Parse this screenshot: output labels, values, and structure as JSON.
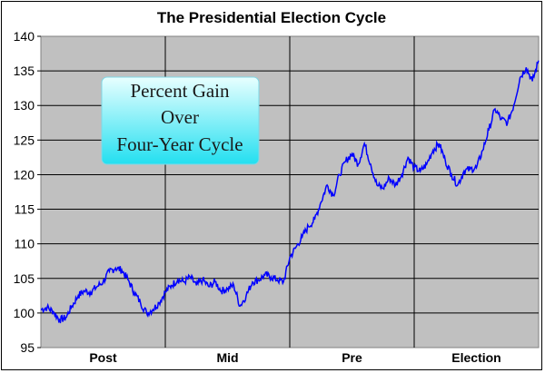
{
  "chart_data": {
    "type": "line",
    "title": "The Presidential Election Cycle",
    "xlabel": "",
    "ylabel": "",
    "categories": [
      "Post",
      "Mid",
      "Pre",
      "Election"
    ],
    "ylim": [
      95,
      140
    ],
    "yticks": [
      95,
      100,
      105,
      110,
      115,
      120,
      125,
      130,
      135,
      140
    ],
    "grid": "horizontal and vertical category dividers",
    "annotation": [
      "Percent Gain",
      "Over",
      "Four-Year Cycle"
    ],
    "series": [
      {
        "color": "#0000ff",
        "x": [
          0,
          0.05,
          0.1,
          0.15,
          0.2,
          0.25,
          0.3,
          0.35,
          0.4,
          0.45,
          0.5,
          0.55,
          0.6,
          0.65,
          0.7,
          0.75,
          0.8,
          0.85,
          0.9,
          0.95,
          1.0,
          1.05,
          1.1,
          1.15,
          1.2,
          1.25,
          1.3,
          1.35,
          1.4,
          1.45,
          1.5,
          1.55,
          1.6,
          1.65,
          1.7,
          1.75,
          1.8,
          1.85,
          1.9,
          1.95,
          2.0,
          2.05,
          2.1,
          2.15,
          2.2,
          2.25,
          2.3,
          2.35,
          2.4,
          2.45,
          2.5,
          2.55,
          2.6,
          2.65,
          2.7,
          2.75,
          2.8,
          2.85,
          2.9,
          2.95,
          3.0,
          3.05,
          3.1,
          3.15,
          3.2,
          3.25,
          3.3,
          3.35,
          3.4,
          3.45,
          3.5,
          3.55,
          3.6,
          3.65,
          3.7,
          3.75,
          3.8,
          3.85,
          3.9,
          3.95,
          4.0
        ],
        "values": [
          100.5,
          100.8,
          100.2,
          99.0,
          99.3,
          101.0,
          102.5,
          103.2,
          103.0,
          103.8,
          104.5,
          106.0,
          106.5,
          106.2,
          104.8,
          103.0,
          101.5,
          100.0,
          100.5,
          101.5,
          103.0,
          104.0,
          104.8,
          104.5,
          105.2,
          104.0,
          104.8,
          103.8,
          104.5,
          103.2,
          103.5,
          104.0,
          101.0,
          102.5,
          104.5,
          104.8,
          105.5,
          105.2,
          104.8,
          104.5,
          108.0,
          109.5,
          111.0,
          112.5,
          113.5,
          116.0,
          118.5,
          117.0,
          120.0,
          122.0,
          123.0,
          121.5,
          124.5,
          121.5,
          118.5,
          118.0,
          119.5,
          118.5,
          120.0,
          122.5,
          121.0,
          120.5,
          121.5,
          123.5,
          124.5,
          122.0,
          120.0,
          118.5,
          120.5,
          120.8,
          121.0,
          123.5,
          126.5,
          129.5,
          128.0,
          127.5,
          130.0,
          134.0,
          135.5,
          133.5,
          136.5
        ]
      }
    ]
  }
}
